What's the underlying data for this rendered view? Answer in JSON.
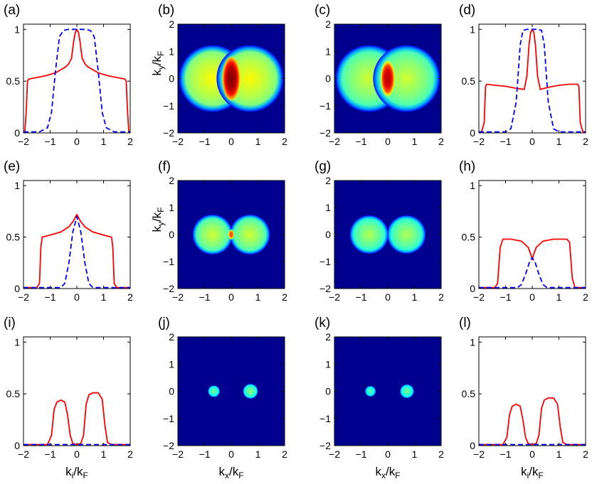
{
  "figure": {
    "background": "#ffffff",
    "solid_color": "#ff0000",
    "dashed_color": "#0000ff",
    "map_background": "#00008f",
    "xlabel_profile": {
      "main": "k",
      "sub1": "i",
      "slash": "/",
      "main2": "k",
      "sub2": "F"
    },
    "xlabel_map": {
      "main": "k",
      "sub1": "x",
      "slash": "/",
      "main2": "k",
      "sub2": "F"
    },
    "ylabel_map": {
      "main": "k",
      "sub1": "y",
      "slash": "/",
      "main2": "k",
      "sub2": "F"
    }
  },
  "chart_data": [
    {
      "id": "a",
      "label": "(a)",
      "type": "line",
      "xlim": [
        -2,
        2
      ],
      "ylim": [
        0,
        1.05
      ],
      "xticks": [
        "−2",
        "−1",
        "0",
        "1",
        "2"
      ],
      "yticks": [
        "0",
        "0.5",
        "1"
      ],
      "series": [
        {
          "style": "solid",
          "color": "#ff0000",
          "x": [
            -2,
            -1.95,
            -1.9,
            -1.85,
            -1.8,
            -1.6,
            -1.2,
            -0.8,
            -0.4,
            -0.3,
            -0.2,
            -0.12,
            -0.06,
            0,
            0.06,
            0.12,
            0.2,
            0.3,
            0.4,
            0.8,
            1.2,
            1.6,
            1.8,
            1.85,
            1.9,
            1.95,
            2
          ],
          "y": [
            0.01,
            0.01,
            0.2,
            0.5,
            0.52,
            0.53,
            0.55,
            0.58,
            0.64,
            0.67,
            0.72,
            0.88,
            0.97,
            1.0,
            0.97,
            0.88,
            0.72,
            0.67,
            0.64,
            0.58,
            0.55,
            0.53,
            0.52,
            0.5,
            0.2,
            0.01,
            0.01
          ]
        },
        {
          "style": "dashed",
          "color": "#0000ff",
          "x": [
            -2,
            -1.4,
            -1.1,
            -0.95,
            -0.8,
            -0.65,
            -0.5,
            -0.3,
            0,
            0.3,
            0.5,
            0.65,
            0.8,
            0.95,
            1.1,
            1.4,
            2
          ],
          "y": [
            0.01,
            0.01,
            0.05,
            0.2,
            0.6,
            0.93,
            0.99,
            1.0,
            1.0,
            1.0,
            0.99,
            0.93,
            0.6,
            0.2,
            0.05,
            0.01,
            0.01
          ]
        }
      ]
    },
    {
      "id": "b",
      "label": "(b)",
      "type": "heatmap",
      "xlim": [
        -2,
        2
      ],
      "ylim": [
        -2,
        2
      ],
      "xticks": [
        "−2",
        "−1",
        "0",
        "1",
        "2"
      ],
      "yticks": [
        "−2",
        "−1",
        "0",
        "1",
        "2"
      ],
      "show_ylabel": true,
      "show_xlabel": false,
      "blobs": [
        {
          "cx": -0.7,
          "cy": 0,
          "r": 1.25,
          "level": 0.55
        },
        {
          "cx": 0.7,
          "cy": 0,
          "r": 1.25,
          "level": 0.55
        }
      ],
      "center": {
        "rx": 0.28,
        "ry": 0.75,
        "level": 1.0
      }
    },
    {
      "id": "c",
      "label": "(c)",
      "type": "heatmap",
      "xlim": [
        -2,
        2
      ],
      "ylim": [
        -2,
        2
      ],
      "xticks": [
        "−2",
        "−1",
        "0",
        "1",
        "2"
      ],
      "yticks": [
        "−2",
        "−1",
        "0",
        "1",
        "2"
      ],
      "show_ylabel": false,
      "show_xlabel": false,
      "blobs": [
        {
          "cx": -0.7,
          "cy": 0,
          "r": 1.25,
          "level": 0.5
        },
        {
          "cx": 0.7,
          "cy": 0,
          "r": 1.25,
          "level": 0.5
        }
      ],
      "center": {
        "rx": 0.22,
        "ry": 0.6,
        "level": 0.95
      }
    },
    {
      "id": "d",
      "label": "(d)",
      "type": "line",
      "xlim": [
        -2,
        2
      ],
      "ylim": [
        0,
        1.05
      ],
      "xticks": [
        "−2",
        "−1",
        "0",
        "1",
        "2"
      ],
      "yticks": [
        "0",
        "0.5",
        "1"
      ],
      "series": [
        {
          "style": "solid",
          "color": "#ff0000",
          "x": [
            -2,
            -1.9,
            -1.8,
            -1.75,
            -1.7,
            -1.4,
            -1.0,
            -0.6,
            -0.3,
            -0.2,
            -0.12,
            -0.06,
            0,
            0.06,
            0.12,
            0.2,
            0.3,
            0.6,
            1.0,
            1.4,
            1.7,
            1.75,
            1.8,
            1.9,
            2
          ],
          "y": [
            0.01,
            0.01,
            0.1,
            0.45,
            0.47,
            0.46,
            0.45,
            0.43,
            0.42,
            0.55,
            0.85,
            0.97,
            1.0,
            0.97,
            0.85,
            0.55,
            0.42,
            0.44,
            0.46,
            0.47,
            0.47,
            0.45,
            0.1,
            0.01,
            0.01
          ]
        },
        {
          "style": "dashed",
          "color": "#0000ff",
          "x": [
            -2,
            -1.0,
            -0.8,
            -0.6,
            -0.45,
            -0.35,
            -0.2,
            0,
            0.2,
            0.35,
            0.45,
            0.6,
            0.8,
            1.0,
            2
          ],
          "y": [
            0.01,
            0.01,
            0.04,
            0.3,
            0.85,
            0.99,
            1.0,
            1.0,
            1.0,
            0.99,
            0.85,
            0.3,
            0.04,
            0.01,
            0.01
          ]
        }
      ]
    },
    {
      "id": "e",
      "label": "(e)",
      "type": "line",
      "xlim": [
        -2,
        2
      ],
      "ylim": [
        0,
        1.05
      ],
      "xticks": [
        "−2",
        "−1",
        "0",
        "1",
        "2"
      ],
      "yticks": [
        "0",
        "0.5",
        "1"
      ],
      "series": [
        {
          "style": "solid",
          "color": "#ff0000",
          "x": [
            -2,
            -1.5,
            -1.4,
            -1.35,
            -1.3,
            -1.0,
            -0.6,
            -0.3,
            -0.15,
            0,
            0.15,
            0.3,
            0.6,
            1.0,
            1.3,
            1.35,
            1.4,
            1.5,
            2
          ],
          "y": [
            0.01,
            0.01,
            0.05,
            0.4,
            0.5,
            0.52,
            0.55,
            0.6,
            0.65,
            0.72,
            0.65,
            0.6,
            0.55,
            0.52,
            0.5,
            0.4,
            0.05,
            0.01,
            0.01
          ]
        },
        {
          "style": "dashed",
          "color": "#0000ff",
          "x": [
            -2,
            -0.6,
            -0.45,
            -0.3,
            -0.15,
            0,
            0.15,
            0.3,
            0.45,
            0.6,
            2
          ],
          "y": [
            0.01,
            0.01,
            0.05,
            0.25,
            0.55,
            0.7,
            0.55,
            0.25,
            0.05,
            0.01,
            0.01
          ]
        }
      ]
    },
    {
      "id": "f",
      "label": "(f)",
      "type": "heatmap",
      "xlim": [
        -2,
        2
      ],
      "ylim": [
        -2,
        2
      ],
      "xticks": [
        "−2",
        "−1",
        "0",
        "1",
        "2"
      ],
      "yticks": [
        "−2",
        "−1",
        "0",
        "1",
        "2"
      ],
      "show_ylabel": true,
      "show_xlabel": false,
      "blobs": [
        {
          "cx": -0.7,
          "cy": 0,
          "r": 0.75,
          "level": 0.5
        },
        {
          "cx": 0.7,
          "cy": 0,
          "r": 0.75,
          "level": 0.5
        }
      ],
      "center": {
        "rx": 0.1,
        "ry": 0.17,
        "level": 0.82
      }
    },
    {
      "id": "g",
      "label": "(g)",
      "type": "heatmap",
      "xlim": [
        -2,
        2
      ],
      "ylim": [
        -2,
        2
      ],
      "xticks": [
        "−2",
        "−1",
        "0",
        "1",
        "2"
      ],
      "yticks": [
        "−2",
        "−1",
        "0",
        "1",
        "2"
      ],
      "show_ylabel": false,
      "show_xlabel": false,
      "blobs": [
        {
          "cx": -0.7,
          "cy": 0,
          "r": 0.72,
          "level": 0.47
        },
        {
          "cx": 0.7,
          "cy": 0,
          "r": 0.72,
          "level": 0.47
        }
      ],
      "center": null
    },
    {
      "id": "h",
      "label": "(h)",
      "type": "line",
      "xlim": [
        -2,
        2
      ],
      "ylim": [
        0,
        1.05
      ],
      "xticks": [
        "−2",
        "−1",
        "0",
        "1",
        "2"
      ],
      "yticks": [
        "0",
        "0.5",
        "1"
      ],
      "series": [
        {
          "style": "solid",
          "color": "#ff0000",
          "x": [
            -2,
            -1.4,
            -1.3,
            -1.2,
            -1.1,
            -0.8,
            -0.4,
            -0.15,
            -0.05,
            0,
            0.05,
            0.15,
            0.4,
            0.8,
            1.1,
            1.3,
            1.4,
            1.5,
            1.6,
            2
          ],
          "y": [
            0.01,
            0.01,
            0.05,
            0.4,
            0.48,
            0.48,
            0.46,
            0.4,
            0.33,
            0.28,
            0.33,
            0.4,
            0.46,
            0.48,
            0.48,
            0.48,
            0.45,
            0.1,
            0.01,
            0.01
          ]
        },
        {
          "style": "dashed",
          "color": "#0000ff",
          "x": [
            -2,
            -0.55,
            -0.4,
            -0.25,
            -0.1,
            0,
            0.1,
            0.25,
            0.4,
            0.55,
            2
          ],
          "y": [
            0.01,
            0.01,
            0.04,
            0.14,
            0.26,
            0.3,
            0.26,
            0.14,
            0.04,
            0.01,
            0.01
          ]
        }
      ]
    },
    {
      "id": "i",
      "label": "(i)",
      "type": "line",
      "xlim": [
        -2,
        2
      ],
      "ylim": [
        0,
        1.05
      ],
      "xticks": [
        "−2",
        "−1",
        "0",
        "1",
        "2"
      ],
      "yticks": [
        "0",
        "0.5",
        "1"
      ],
      "show_xlabel": true,
      "series": [
        {
          "style": "solid",
          "color": "#ff0000",
          "x": [
            -2,
            -1.1,
            -0.95,
            -0.85,
            -0.75,
            -0.6,
            -0.45,
            -0.35,
            -0.25,
            -0.15,
            0,
            0.15,
            0.25,
            0.35,
            0.45,
            0.6,
            0.8,
            0.95,
            1.05,
            1.15,
            1.3,
            2
          ],
          "y": [
            0.01,
            0.01,
            0.1,
            0.35,
            0.42,
            0.44,
            0.42,
            0.3,
            0.1,
            0.02,
            0.01,
            0.02,
            0.1,
            0.4,
            0.49,
            0.51,
            0.51,
            0.45,
            0.2,
            0.03,
            0.01,
            0.01
          ]
        },
        {
          "style": "dashed",
          "color": "#0000ff",
          "x": [
            -2,
            2
          ],
          "y": [
            0.01,
            0.01
          ]
        }
      ]
    },
    {
      "id": "j",
      "label": "(j)",
      "type": "heatmap",
      "xlim": [
        -2,
        2
      ],
      "ylim": [
        -2,
        2
      ],
      "xticks": [
        "−2",
        "−1",
        "0",
        "1",
        "2"
      ],
      "yticks": [
        "−2",
        "−1",
        "0",
        "1",
        "2"
      ],
      "show_ylabel": false,
      "show_xlabel": true,
      "blobs": [
        {
          "cx": -0.65,
          "cy": 0,
          "r": 0.22,
          "level": 0.42
        },
        {
          "cx": 0.72,
          "cy": 0,
          "r": 0.28,
          "level": 0.44
        }
      ],
      "center": null
    },
    {
      "id": "k",
      "label": "(k)",
      "type": "heatmap",
      "xlim": [
        -2,
        2
      ],
      "ylim": [
        -2,
        2
      ],
      "xticks": [
        "−2",
        "−1",
        "0",
        "1",
        "2"
      ],
      "yticks": [
        "−2",
        "−1",
        "0",
        "1",
        "2"
      ],
      "show_ylabel": false,
      "show_xlabel": true,
      "blobs": [
        {
          "cx": -0.65,
          "cy": 0,
          "r": 0.2,
          "level": 0.4
        },
        {
          "cx": 0.72,
          "cy": 0,
          "r": 0.26,
          "level": 0.42
        }
      ],
      "center": null
    },
    {
      "id": "l",
      "label": "(l)",
      "type": "line",
      "xlim": [
        -2,
        2
      ],
      "ylim": [
        0,
        1.05
      ],
      "xticks": [
        "−2",
        "−1",
        "0",
        "1",
        "2"
      ],
      "yticks": [
        "0",
        "0.5",
        "1"
      ],
      "show_xlabel": true,
      "series": [
        {
          "style": "solid",
          "color": "#ff0000",
          "x": [
            -2,
            -1.1,
            -0.95,
            -0.85,
            -0.75,
            -0.6,
            -0.45,
            -0.35,
            -0.25,
            -0.15,
            0,
            0.15,
            0.25,
            0.35,
            0.45,
            0.6,
            0.8,
            0.95,
            1.05,
            1.15,
            1.3,
            2
          ],
          "y": [
            0.01,
            0.01,
            0.08,
            0.3,
            0.38,
            0.4,
            0.38,
            0.25,
            0.08,
            0.02,
            0.01,
            0.02,
            0.1,
            0.36,
            0.44,
            0.46,
            0.46,
            0.4,
            0.18,
            0.03,
            0.01,
            0.01
          ]
        },
        {
          "style": "dashed",
          "color": "#0000ff",
          "x": [
            -2,
            2
          ],
          "y": [
            0.01,
            0.01
          ]
        }
      ]
    }
  ]
}
